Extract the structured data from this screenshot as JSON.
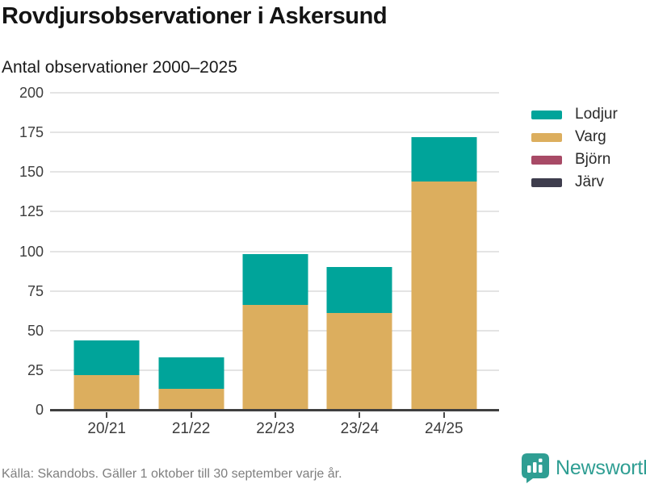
{
  "header": {
    "title": "Rovdjursobservationer i Askersund",
    "subtitle": "Antal observationer 2000–2025"
  },
  "chart_data": {
    "type": "bar",
    "stacked": true,
    "title": "Rovdjursobservationer i Askersund",
    "subtitle": "Antal observationer 2000–2025",
    "xlabel": "",
    "ylabel": "",
    "categories": [
      "20/21",
      "21/22",
      "22/23",
      "23/24",
      "24/25"
    ],
    "series": [
      {
        "name": "Lodjur",
        "color": "#00a49a",
        "values": [
          22,
          20,
          32,
          29,
          28
        ]
      },
      {
        "name": "Varg",
        "color": "#dcae5e",
        "values": [
          22,
          13,
          66,
          61,
          144
        ]
      },
      {
        "name": "Björn",
        "color": "#a84a66",
        "values": [
          0,
          0,
          0,
          0,
          0
        ]
      },
      {
        "name": "Järv",
        "color": "#3e3d4d",
        "values": [
          0,
          0,
          0,
          0,
          0
        ]
      }
    ],
    "stack_order_bottom_to_top": [
      "Järv",
      "Björn",
      "Varg",
      "Lodjur"
    ],
    "totals": [
      44,
      33,
      98,
      90,
      172
    ],
    "ylim": [
      0,
      200
    ],
    "ytick_step": 25,
    "grid": true,
    "legend_position": "right"
  },
  "footer": {
    "source": "Källa: Skandobs. Gäller 1 oktober till 30 september varje år.",
    "brand": "Newsworthy"
  },
  "colors": {
    "accent_teal": "#00a49a",
    "gold": "#dcae5e",
    "rose": "#a84a66",
    "slate": "#3e3d4d",
    "axis": "#3f3f3f",
    "gridline": "#e4e4e4",
    "brand_teal": "#2f9e93"
  }
}
